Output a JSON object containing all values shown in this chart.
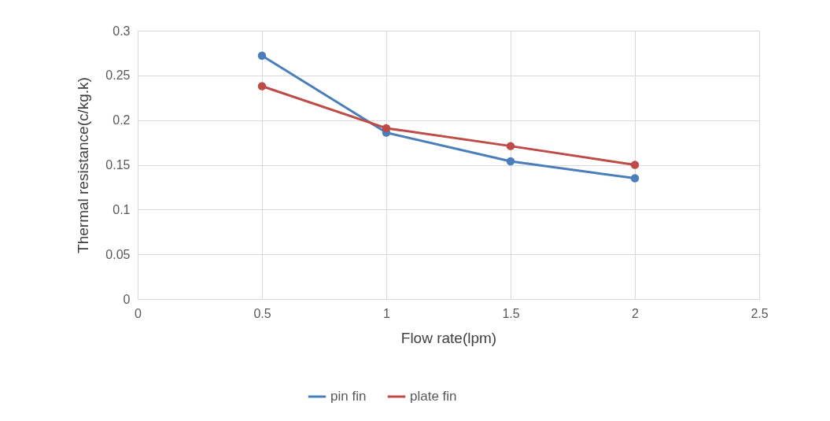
{
  "chart_data": {
    "type": "line",
    "xlabel": "Flow rate(lpm)",
    "ylabel": "Thermal resistance(c/kg.k)",
    "x": [
      0.5,
      1,
      1.5,
      2
    ],
    "series": [
      {
        "name": "pin fin",
        "color": "#4a7ebb",
        "values": [
          0.272,
          0.186,
          0.154,
          0.135
        ]
      },
      {
        "name": "plate fin",
        "color": "#be4b48",
        "values": [
          0.238,
          0.191,
          0.171,
          0.15
        ]
      }
    ],
    "xlim": [
      0,
      2.5
    ],
    "xticks": [
      0,
      0.5,
      1,
      1.5,
      2,
      2.5
    ],
    "ylim": [
      0,
      0.3
    ],
    "yticks": [
      0,
      0.05,
      0.1,
      0.15,
      0.2,
      0.25,
      0.3
    ],
    "grid": true,
    "legend": "bottom",
    "marker": "circle",
    "line_style": "solid"
  }
}
